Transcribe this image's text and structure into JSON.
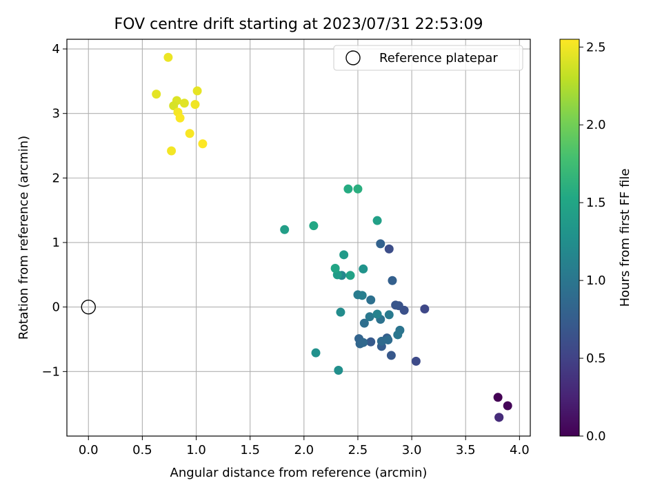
{
  "chart_data": {
    "type": "scatter",
    "title": "FOV centre drift starting at 2023/07/31 22:53:09",
    "xlabel": "Angular distance from reference (arcmin)",
    "ylabel": "Rotation from reference (arcmin)",
    "xlim": [
      -0.2,
      4.1
    ],
    "ylim": [
      -2.0,
      4.15
    ],
    "xticks": [
      0.0,
      0.5,
      1.0,
      1.5,
      2.0,
      2.5,
      3.0,
      3.5,
      4.0
    ],
    "xtick_labels": [
      "0.0",
      "0.5",
      "1.0",
      "1.5",
      "2.0",
      "2.5",
      "3.0",
      "3.5",
      "4.0"
    ],
    "yticks": [
      -1,
      0,
      1,
      2,
      3,
      4
    ],
    "ytick_labels": [
      "−1",
      "0",
      "1",
      "2",
      "3",
      "4"
    ],
    "grid": true,
    "legend": {
      "placement": "top-right",
      "entries": [
        "Reference platepar"
      ]
    },
    "reference_point": {
      "x": 0.0,
      "y": 0.0
    },
    "colorbar": {
      "label": "Hours from first FF file",
      "colormap": "viridis",
      "range": [
        0.0,
        2.55
      ],
      "ticks": [
        0.0,
        0.5,
        1.0,
        1.5,
        2.0,
        2.5
      ],
      "tick_labels": [
        "0.0",
        "0.5",
        "1.0",
        "1.5",
        "2.0",
        "2.5"
      ]
    },
    "points": [
      {
        "x": 3.8,
        "y": -1.4,
        "c": 0.0
      },
      {
        "x": 3.89,
        "y": -1.53,
        "c": 0.03
      },
      {
        "x": 3.81,
        "y": -1.71,
        "c": 0.3
      },
      {
        "x": 3.81,
        "y": -1.71,
        "c": 0.32
      },
      {
        "x": 3.12,
        "y": -0.03,
        "c": 0.55
      },
      {
        "x": 3.04,
        "y": -0.84,
        "c": 0.58
      },
      {
        "x": 2.79,
        "y": 0.9,
        "c": 0.6
      },
      {
        "x": 2.93,
        "y": -0.05,
        "c": 0.63
      },
      {
        "x": 2.88,
        "y": 0.02,
        "c": 0.65
      },
      {
        "x": 2.85,
        "y": 0.03,
        "c": 0.68
      },
      {
        "x": 2.81,
        "y": -0.75,
        "c": 0.7
      },
      {
        "x": 2.62,
        "y": -0.54,
        "c": 0.72
      },
      {
        "x": 2.72,
        "y": -0.61,
        "c": 0.75
      },
      {
        "x": 2.77,
        "y": -0.48,
        "c": 0.77
      },
      {
        "x": 2.82,
        "y": 0.41,
        "c": 0.78
      },
      {
        "x": 2.71,
        "y": 0.98,
        "c": 0.8
      },
      {
        "x": 2.51,
        "y": -0.49,
        "c": 0.82
      },
      {
        "x": 2.52,
        "y": -0.57,
        "c": 0.84
      },
      {
        "x": 2.55,
        "y": -0.55,
        "c": 0.86
      },
      {
        "x": 2.72,
        "y": -0.53,
        "c": 0.88
      },
      {
        "x": 2.78,
        "y": -0.51,
        "c": 0.9
      },
      {
        "x": 2.56,
        "y": -0.25,
        "c": 0.92
      },
      {
        "x": 2.62,
        "y": 0.11,
        "c": 0.94
      },
      {
        "x": 2.71,
        "y": -0.19,
        "c": 0.96
      },
      {
        "x": 2.89,
        "y": -0.36,
        "c": 0.98
      },
      {
        "x": 2.87,
        "y": -0.43,
        "c": 1.0
      },
      {
        "x": 2.61,
        "y": -0.15,
        "c": 1.02
      },
      {
        "x": 2.79,
        "y": -0.12,
        "c": 1.04
      },
      {
        "x": 2.5,
        "y": 0.19,
        "c": 1.06
      },
      {
        "x": 2.54,
        "y": 0.18,
        "c": 1.08
      },
      {
        "x": 2.68,
        "y": -0.11,
        "c": 1.12
      },
      {
        "x": 2.35,
        "y": 0.49,
        "c": 1.18
      },
      {
        "x": 2.34,
        "y": -0.08,
        "c": 1.22
      },
      {
        "x": 2.32,
        "y": -0.98,
        "c": 1.25
      },
      {
        "x": 2.11,
        "y": -0.71,
        "c": 1.28
      },
      {
        "x": 2.55,
        "y": 0.59,
        "c": 1.3
      },
      {
        "x": 2.37,
        "y": 0.81,
        "c": 1.38
      },
      {
        "x": 2.31,
        "y": 0.5,
        "c": 1.4
      },
      {
        "x": 1.82,
        "y": 1.2,
        "c": 1.42
      },
      {
        "x": 2.68,
        "y": 1.34,
        "c": 1.44
      },
      {
        "x": 2.43,
        "y": 0.49,
        "c": 1.46
      },
      {
        "x": 2.29,
        "y": 0.6,
        "c": 1.5
      },
      {
        "x": 2.09,
        "y": 1.26,
        "c": 1.52
      },
      {
        "x": 2.41,
        "y": 1.83,
        "c": 1.56
      },
      {
        "x": 2.5,
        "y": 1.83,
        "c": 1.6
      },
      {
        "x": 0.74,
        "y": 3.87,
        "c": 2.48
      },
      {
        "x": 0.63,
        "y": 3.3,
        "c": 2.45
      },
      {
        "x": 0.82,
        "y": 3.2,
        "c": 2.42
      },
      {
        "x": 0.79,
        "y": 3.12,
        "c": 2.4
      },
      {
        "x": 0.89,
        "y": 3.16,
        "c": 2.44
      },
      {
        "x": 1.01,
        "y": 3.35,
        "c": 2.46
      },
      {
        "x": 0.99,
        "y": 3.14,
        "c": 2.5
      },
      {
        "x": 0.83,
        "y": 3.02,
        "c": 2.52
      },
      {
        "x": 0.85,
        "y": 2.93,
        "c": 2.54
      },
      {
        "x": 0.94,
        "y": 2.69,
        "c": 2.53
      },
      {
        "x": 1.06,
        "y": 2.53,
        "c": 2.55
      },
      {
        "x": 0.77,
        "y": 2.42,
        "c": 2.51
      }
    ]
  }
}
